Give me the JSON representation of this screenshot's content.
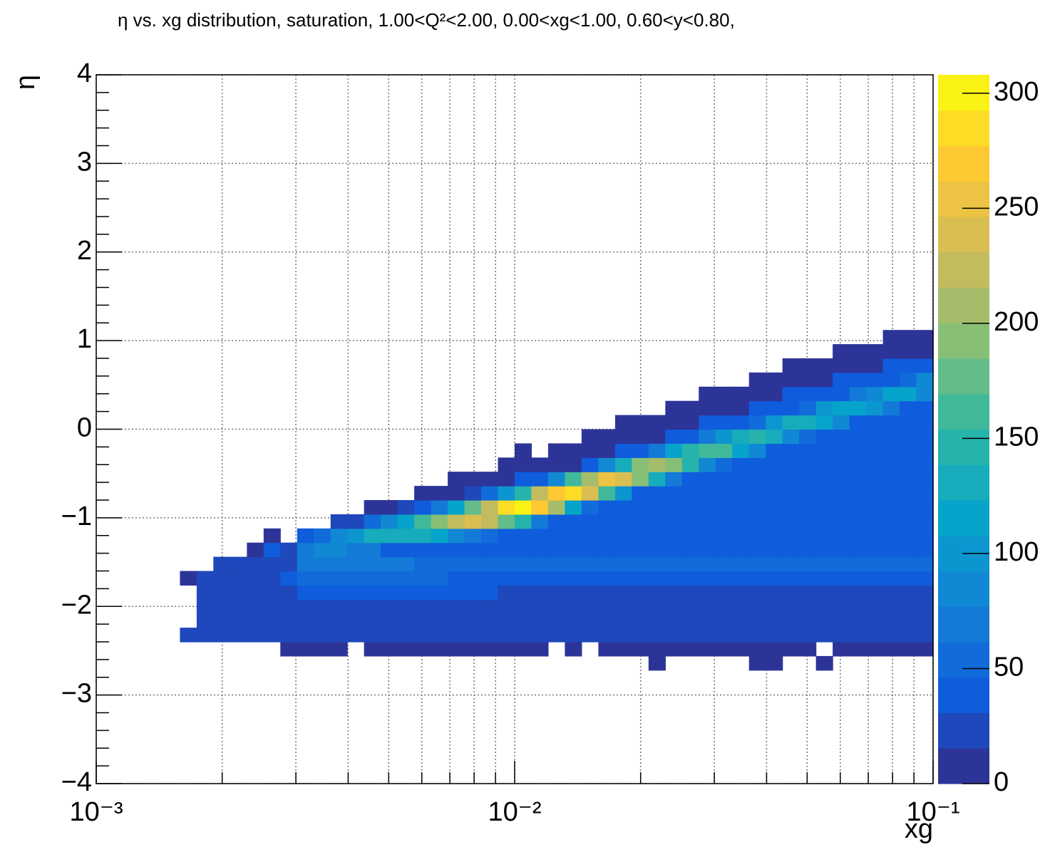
{
  "chart_data": {
    "type": "heatmap",
    "title": "η vs. xg distribution, saturation, 1.00<Q²<2.00, 0.00<xg<1.00, 0.60<y<0.80,",
    "x_label": "xg",
    "y_label": "η",
    "logx": true,
    "grid": true,
    "xlim": [
      0.001,
      0.1
    ],
    "xticks": [
      {
        "value": 0.001,
        "label": "10⁻³"
      },
      {
        "value": 0.01,
        "label": "10⁻²"
      },
      {
        "value": 0.1,
        "label": "10⁻¹"
      }
    ],
    "xminor": [
      0.002,
      0.003,
      0.004,
      0.005,
      0.006,
      0.007,
      0.008,
      0.009,
      0.02,
      0.03,
      0.04,
      0.05,
      0.06,
      0.07,
      0.08,
      0.09
    ],
    "ylim": [
      -4,
      4
    ],
    "yticks": [
      {
        "value": -4,
        "label": "−4"
      },
      {
        "value": -3,
        "label": "−3"
      },
      {
        "value": -2,
        "label": "−2"
      },
      {
        "value": -1,
        "label": "−1"
      },
      0,
      1,
      2,
      3,
      4
    ],
    "yminor": [
      -3.8,
      -3.6,
      -3.4,
      -3.2,
      -2.8,
      -2.6,
      -2.4,
      -2.2,
      -1.8,
      -1.6,
      -1.4,
      -1.2,
      -0.8,
      -0.6,
      -0.4,
      -0.2,
      0.2,
      0.4,
      0.6,
      0.8,
      1.2,
      1.4,
      1.6,
      1.8,
      2.2,
      2.4,
      2.6,
      2.8,
      3.2,
      3.4,
      3.6,
      3.8
    ],
    "zlim": [
      0,
      308
    ],
    "zticks": [
      0,
      50,
      100,
      150,
      200,
      250,
      300
    ],
    "levels": 20,
    "colorscale": [
      "#352a87",
      "#0f5cdd",
      "#1481d6",
      "#06a4ca",
      "#2eb7a4",
      "#87bf77",
      "#d1bb59",
      "#fec832",
      "#f9fb0e"
    ],
    "xbins": [
      0.001585,
      0.001738,
      0.001905,
      0.002089,
      0.002291,
      0.002512,
      0.002754,
      0.00302,
      0.003311,
      0.003631,
      0.003981,
      0.004365,
      0.004786,
      0.005248,
      0.005754,
      0.00631,
      0.006918,
      0.007586,
      0.008318,
      0.00912,
      0.01,
      0.01096,
      0.01202,
      0.01318,
      0.01445,
      0.01585,
      0.01738,
      0.01905,
      0.02089,
      0.02291,
      0.02512,
      0.02754,
      0.0302,
      0.03311,
      0.03631,
      0.03981,
      0.04365,
      0.04786,
      0.05248,
      0.05754,
      0.0631,
      0.06918,
      0.07586,
      0.08318,
      0.0912,
      0.1
    ],
    "ybins": [
      -2.72,
      -2.56,
      -2.4,
      -2.24,
      -2.08,
      -1.92,
      -1.76,
      -1.6,
      -1.44,
      -1.28,
      -1.12,
      -0.96,
      -0.8,
      -0.64,
      -0.48,
      -0.32,
      -0.16,
      0,
      0.16,
      0.32,
      0.48,
      0.64,
      0.8,
      0.96,
      1.12
    ],
    "z": [
      [
        0,
        0,
        0,
        0,
        0,
        0,
        0,
        0,
        0,
        0,
        0,
        0,
        0,
        0,
        0,
        0,
        0,
        0,
        0,
        0,
        0,
        0,
        0,
        0,
        0,
        0,
        0,
        0,
        5,
        0,
        0,
        0,
        0,
        0,
        5,
        5,
        0,
        0,
        5,
        0,
        0,
        0,
        0,
        0,
        0
      ],
      [
        0,
        0,
        0,
        0,
        0,
        0,
        10,
        10,
        10,
        10,
        0,
        12,
        12,
        12,
        12,
        12,
        12,
        12,
        12,
        12,
        12,
        12,
        0,
        12,
        0,
        12,
        12,
        12,
        12,
        12,
        12,
        12,
        12,
        12,
        12,
        12,
        12,
        12,
        0,
        12,
        12,
        12,
        12,
        12,
        12
      ],
      [
        20,
        20,
        20,
        20,
        20,
        20,
        20,
        20,
        20,
        20,
        20,
        20,
        20,
        20,
        20,
        20,
        20,
        20,
        20,
        20,
        20,
        20,
        20,
        20,
        20,
        20,
        20,
        20,
        20,
        20,
        20,
        20,
        20,
        20,
        20,
        20,
        20,
        20,
        20,
        20,
        20,
        20,
        20,
        20,
        20
      ],
      [
        0,
        25,
        25,
        25,
        25,
        25,
        25,
        25,
        25,
        25,
        25,
        25,
        25,
        25,
        25,
        25,
        25,
        25,
        25,
        25,
        25,
        25,
        25,
        25,
        25,
        25,
        25,
        25,
        25,
        25,
        25,
        25,
        25,
        25,
        25,
        25,
        25,
        25,
        25,
        25,
        25,
        25,
        25,
        25,
        25
      ],
      [
        0,
        25,
        25,
        25,
        25,
        25,
        25,
        25,
        25,
        25,
        25,
        25,
        25,
        25,
        25,
        25,
        25,
        25,
        25,
        25,
        25,
        25,
        25,
        25,
        25,
        25,
        25,
        25,
        25,
        25,
        25,
        25,
        25,
        25,
        25,
        25,
        25,
        25,
        25,
        25,
        25,
        25,
        25,
        25,
        25
      ],
      [
        0,
        20,
        20,
        20,
        20,
        20,
        20,
        45,
        45,
        45,
        45,
        45,
        45,
        45,
        45,
        45,
        45,
        45,
        45,
        22,
        22,
        22,
        22,
        22,
        22,
        22,
        22,
        22,
        22,
        22,
        22,
        22,
        22,
        22,
        22,
        22,
        22,
        22,
        22,
        22,
        22,
        22,
        22,
        22,
        22
      ],
      [
        15,
        20,
        20,
        20,
        20,
        20,
        35,
        60,
        60,
        60,
        60,
        60,
        60,
        60,
        60,
        60,
        45,
        45,
        45,
        45,
        45,
        45,
        45,
        45,
        45,
        45,
        45,
        45,
        45,
        45,
        45,
        45,
        45,
        45,
        45,
        45,
        45,
        45,
        45,
        45,
        45,
        45,
        45,
        45,
        45
      ],
      [
        0,
        0,
        20,
        20,
        20,
        20,
        20,
        70,
        70,
        70,
        70,
        70,
        70,
        70,
        60,
        60,
        60,
        60,
        60,
        60,
        60,
        50,
        50,
        50,
        50,
        50,
        50,
        50,
        50,
        50,
        50,
        50,
        50,
        50,
        50,
        50,
        50,
        50,
        50,
        50,
        50,
        50,
        50,
        50,
        50
      ],
      [
        0,
        0,
        0,
        0,
        15,
        33,
        30,
        70,
        82,
        82,
        75,
        66,
        45,
        40,
        40,
        40,
        40,
        40,
        40,
        40,
        40,
        40,
        40,
        40,
        40,
        40,
        40,
        40,
        40,
        40,
        40,
        40,
        40,
        40,
        40,
        40,
        40,
        40,
        40,
        40,
        40,
        40,
        40,
        40,
        40
      ],
      [
        0,
        0,
        0,
        0,
        0,
        15,
        0,
        32,
        52,
        82,
        102,
        124,
        136,
        132,
        131,
        122,
        90,
        70,
        48,
        40,
        40,
        40,
        40,
        40,
        40,
        40,
        40,
        40,
        40,
        40,
        40,
        40,
        40,
        40,
        40,
        40,
        40,
        40,
        40,
        40,
        40,
        40,
        40,
        40,
        40
      ],
      [
        0,
        0,
        0,
        0,
        0,
        0,
        0,
        0,
        0,
        17,
        30,
        49,
        85,
        112,
        154,
        194,
        228,
        242,
        230,
        183,
        140,
        66,
        40,
        40,
        40,
        40,
        40,
        40,
        40,
        40,
        40,
        40,
        40,
        40,
        40,
        40,
        40,
        40,
        40,
        40,
        40,
        40,
        40,
        40,
        40
      ],
      [
        0,
        0,
        0,
        0,
        0,
        0,
        0,
        0,
        0,
        0,
        0,
        15,
        15,
        21,
        38,
        64,
        122,
        177,
        230,
        291,
        305,
        264,
        201,
        113,
        61,
        40,
        40,
        40,
        40,
        40,
        40,
        40,
        40,
        40,
        40,
        40,
        40,
        40,
        40,
        40,
        40,
        40,
        40,
        40,
        40
      ],
      [
        0,
        0,
        0,
        0,
        0,
        0,
        0,
        0,
        0,
        0,
        0,
        0,
        0,
        0,
        15,
        15,
        15,
        29,
        48,
        96,
        140,
        225,
        274,
        287,
        242,
        159,
        96,
        40,
        40,
        40,
        40,
        40,
        40,
        40,
        40,
        40,
        40,
        40,
        40,
        40,
        40,
        40,
        40,
        40,
        40
      ],
      [
        0,
        0,
        0,
        0,
        0,
        0,
        0,
        0,
        0,
        0,
        0,
        0,
        0,
        0,
        0,
        0,
        15,
        15,
        15,
        15,
        40,
        42,
        80,
        154,
        206,
        252,
        243,
        189,
        131,
        64,
        40,
        40,
        40,
        40,
        40,
        40,
        40,
        40,
        40,
        40,
        40,
        40,
        40,
        40,
        40
      ],
      [
        0,
        0,
        0,
        0,
        0,
        0,
        0,
        0,
        0,
        0,
        0,
        0,
        0,
        0,
        0,
        0,
        0,
        0,
        0,
        15,
        15,
        15,
        15,
        15,
        40,
        83,
        130,
        189,
        209,
        194,
        152,
        90,
        51,
        40,
        40,
        40,
        40,
        40,
        40,
        40,
        40,
        40,
        40,
        40,
        40
      ],
      [
        0,
        0,
        0,
        0,
        0,
        0,
        0,
        0,
        0,
        0,
        0,
        0,
        0,
        0,
        0,
        0,
        0,
        0,
        0,
        0,
        15,
        0,
        15,
        15,
        15,
        15,
        40,
        40,
        69,
        122,
        152,
        168,
        155,
        112,
        77,
        40,
        40,
        40,
        40,
        40,
        40,
        40,
        40,
        40,
        40
      ],
      [
        0,
        0,
        0,
        0,
        0,
        0,
        0,
        0,
        0,
        0,
        0,
        0,
        0,
        0,
        0,
        0,
        0,
        0,
        0,
        0,
        0,
        0,
        0,
        0,
        15,
        15,
        15,
        15,
        15,
        40,
        40,
        66,
        98,
        132,
        144,
        130,
        92,
        60,
        40,
        40,
        40,
        40,
        40,
        40,
        40
      ],
      [
        0,
        0,
        0,
        0,
        0,
        0,
        0,
        0,
        0,
        0,
        0,
        0,
        0,
        0,
        0,
        0,
        0,
        0,
        0,
        0,
        0,
        0,
        0,
        0,
        0,
        0,
        15,
        15,
        15,
        15,
        15,
        40,
        40,
        40,
        57,
        95,
        126,
        130,
        110,
        82,
        46,
        40,
        40,
        40,
        40
      ],
      [
        0,
        0,
        0,
        0,
        0,
        0,
        0,
        0,
        0,
        0,
        0,
        0,
        0,
        0,
        0,
        0,
        0,
        0,
        0,
        0,
        0,
        0,
        0,
        0,
        0,
        0,
        0,
        0,
        0,
        15,
        15,
        15,
        15,
        15,
        40,
        40,
        40,
        60,
        94,
        112,
        117,
        101,
        68,
        43,
        40
      ],
      [
        0,
        0,
        0,
        0,
        0,
        0,
        0,
        0,
        0,
        0,
        0,
        0,
        0,
        0,
        0,
        0,
        0,
        0,
        0,
        0,
        0,
        0,
        0,
        0,
        0,
        0,
        0,
        0,
        0,
        0,
        0,
        15,
        15,
        15,
        15,
        15,
        40,
        40,
        40,
        40,
        63,
        86,
        109,
        109,
        89
      ],
      [
        0,
        0,
        0,
        0,
        0,
        0,
        0,
        0,
        0,
        0,
        0,
        0,
        0,
        0,
        0,
        0,
        0,
        0,
        0,
        0,
        0,
        0,
        0,
        0,
        0,
        0,
        0,
        0,
        0,
        0,
        0,
        0,
        0,
        0,
        15,
        15,
        15,
        15,
        15,
        40,
        40,
        40,
        40,
        58,
        89
      ],
      [
        0,
        0,
        0,
        0,
        0,
        0,
        0,
        0,
        0,
        0,
        0,
        0,
        0,
        0,
        0,
        0,
        0,
        0,
        0,
        0,
        0,
        0,
        0,
        0,
        0,
        0,
        0,
        0,
        0,
        0,
        0,
        0,
        0,
        0,
        0,
        0,
        15,
        15,
        15,
        15,
        15,
        15,
        40,
        40,
        40
      ],
      [
        0,
        0,
        0,
        0,
        0,
        0,
        0,
        0,
        0,
        0,
        0,
        0,
        0,
        0,
        0,
        0,
        0,
        0,
        0,
        0,
        0,
        0,
        0,
        0,
        0,
        0,
        0,
        0,
        0,
        0,
        0,
        0,
        0,
        0,
        0,
        0,
        0,
        0,
        0,
        15,
        15,
        15,
        15,
        15,
        15
      ],
      [
        0,
        0,
        0,
        0,
        0,
        0,
        0,
        0,
        0,
        0,
        0,
        0,
        0,
        0,
        0,
        0,
        0,
        0,
        0,
        0,
        0,
        0,
        0,
        0,
        0,
        0,
        0,
        0,
        0,
        0,
        0,
        0,
        0,
        0,
        0,
        0,
        0,
        0,
        0,
        0,
        0,
        0,
        15,
        15,
        15
      ]
    ]
  }
}
